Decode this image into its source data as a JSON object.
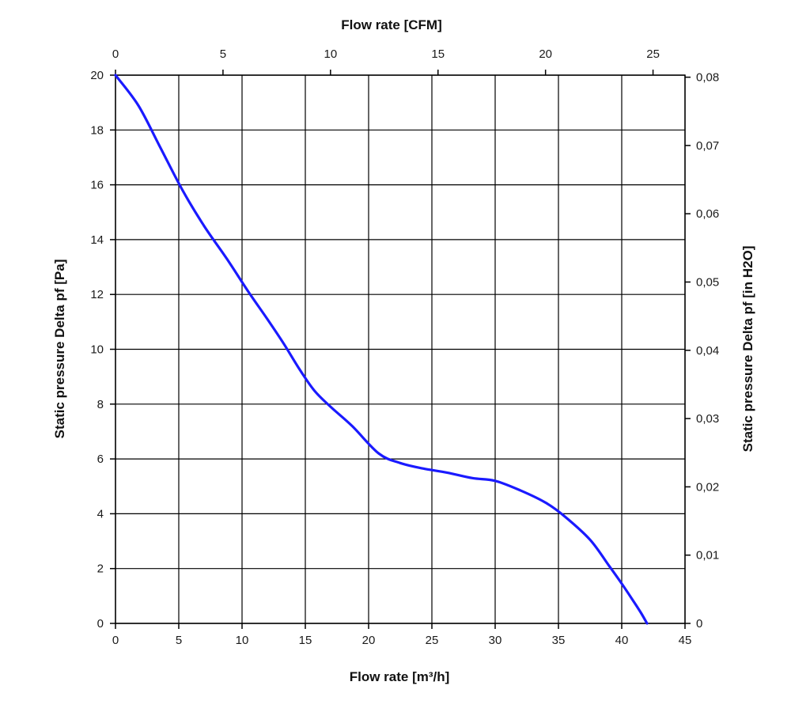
{
  "chart_data": {
    "type": "line",
    "title": "",
    "xlabel_bottom": "Flow rate [m³/h]",
    "xlabel_top": "Flow rate [CFM]",
    "ylabel_left": "Static pressure Delta pf [Pa]",
    "ylabel_right": "Static pressure Delta pf [in H2O]",
    "xlim": [
      0,
      45
    ],
    "ylim": [
      0,
      20
    ],
    "x_ticks": [
      "0",
      "5",
      "10",
      "15",
      "20",
      "25",
      "30",
      "35",
      "40",
      "45"
    ],
    "y_ticks": [
      "0",
      "2",
      "4",
      "6",
      "8",
      "10",
      "12",
      "14",
      "16",
      "18",
      "20"
    ],
    "top_ticks": [
      {
        "label": "0",
        "value": 0
      },
      {
        "label": "5",
        "value": 5
      },
      {
        "label": "10",
        "value": 10
      },
      {
        "label": "15",
        "value": 15
      },
      {
        "label": "20",
        "value": 20
      },
      {
        "label": "25",
        "value": 25
      }
    ],
    "top_unit_per_bottom_unit": 0.5886,
    "right_ticks": [
      {
        "label": "0",
        "value": 0
      },
      {
        "label": "0,01",
        "value": 0.01
      },
      {
        "label": "0,02",
        "value": 0.02
      },
      {
        "label": "0,03",
        "value": 0.03
      },
      {
        "label": "0,04",
        "value": 0.04
      },
      {
        "label": "0,05",
        "value": 0.05
      },
      {
        "label": "0,06",
        "value": 0.06
      },
      {
        "label": "0,07",
        "value": 0.07
      },
      {
        "label": "0,08",
        "value": 0.08
      }
    ],
    "right_unit_per_left_unit": 0.004015,
    "grid": true,
    "series": [
      {
        "color": "#1a1aff",
        "x": [
          0,
          1.8,
          3.5,
          5.3,
          7,
          8.8,
          10.5,
          12,
          13.3,
          14.5,
          15.7,
          17,
          18.7,
          20.8,
          22.5,
          24.3,
          26.2,
          28.2,
          30,
          32,
          34,
          35.5,
          37.5,
          39,
          40,
          40.8,
          41.5,
          42
        ],
        "y": [
          20,
          18.9,
          17.4,
          15.8,
          14.5,
          13.3,
          12.1,
          11.1,
          10.2,
          9.3,
          8.5,
          7.9,
          7.2,
          6.2,
          5.85,
          5.65,
          5.5,
          5.3,
          5.2,
          4.85,
          4.4,
          3.9,
          3.05,
          2.1,
          1.45,
          0.9,
          0.4,
          0
        ]
      }
    ]
  }
}
